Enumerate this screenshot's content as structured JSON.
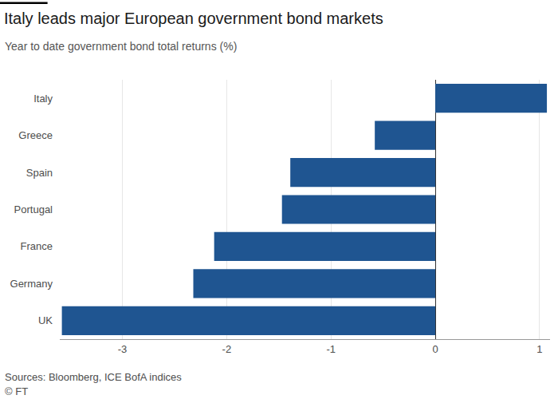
{
  "chart_data": {
    "type": "bar",
    "title": "Italy leads major European government bond markets",
    "subtitle": "Year to date government bond total returns (%)",
    "annotations": [
      "Sources: Bloomberg, ICE BofA indices",
      "© FT"
    ],
    "orientation": "horizontal",
    "categories": [
      "Italy",
      "Greece",
      "Spain",
      "Portugal",
      "France",
      "Germany",
      "UK"
    ],
    "values": [
      1.07,
      -0.58,
      -1.39,
      -1.47,
      -2.12,
      -2.32,
      -3.58
    ],
    "color": "#1f5591",
    "xlim": [
      -3.6,
      1.1
    ],
    "xticks": [
      -3,
      -2,
      -1,
      0,
      1
    ],
    "grid": true
  }
}
